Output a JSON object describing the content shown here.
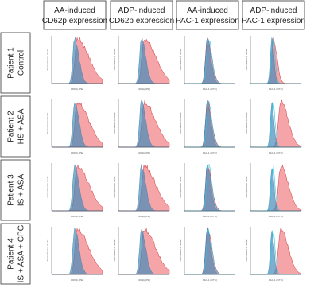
{
  "columns": [
    {
      "line1": "AA-induced",
      "line2": "CD62p expression"
    },
    {
      "line1": "ADP-induced",
      "line2": "CD62p expression"
    },
    {
      "line1": "AA-induced",
      "line2": "PAC-1 expression"
    },
    {
      "line1": "ADP-induced",
      "line2": "PAC-1 expression"
    }
  ],
  "rows": [
    {
      "line1": "Patient 1",
      "line2": "Control"
    },
    {
      "line1": "Patient 2",
      "line2": "HS + ASA"
    },
    {
      "line1": "Patient 3",
      "line2": "IS + ASA"
    },
    {
      "line1": "Patient 4",
      "line2": "IS + ASA + CPG"
    }
  ],
  "axes": {
    "x_labels": [
      "CD62p (PE)",
      "CD62p (PE)",
      "PAC-1 (FITC)",
      "PAC-1 (FITC)"
    ],
    "y_label": "Normalized to mode"
  }
}
